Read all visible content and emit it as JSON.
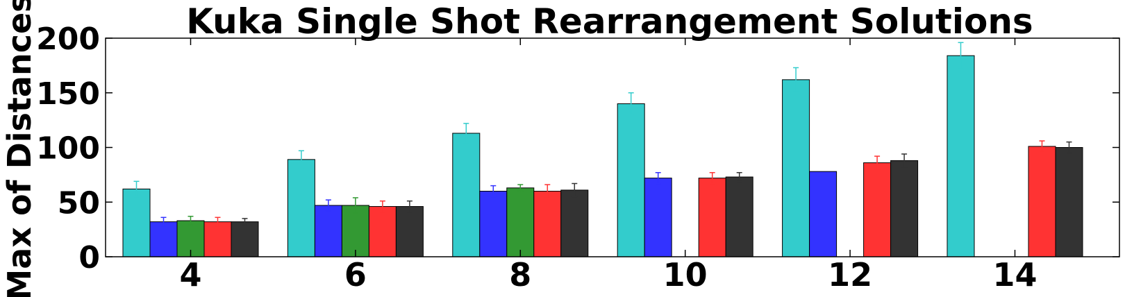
{
  "chart_data": {
    "type": "bar",
    "title": "Kuka Single Shot Rearrangement Solutions",
    "xlabel": "",
    "ylabel": "Max of Distances",
    "ylim": [
      0,
      200
    ],
    "yticks": [
      0,
      50,
      100,
      150,
      200
    ],
    "categories": [
      "4",
      "6",
      "8",
      "10",
      "12",
      "14"
    ],
    "grid": false,
    "series": [
      {
        "color": "#33cccc",
        "values": [
          62,
          89,
          113,
          140,
          162,
          184
        ],
        "errors": [
          7,
          8,
          9,
          10,
          11,
          12
        ]
      },
      {
        "color": "#3333ff",
        "values": [
          32,
          47,
          60,
          72,
          78,
          null
        ],
        "errors": [
          4,
          5,
          5,
          5,
          0,
          null
        ]
      },
      {
        "color": "#339933",
        "values": [
          33,
          47,
          63,
          null,
          null,
          null
        ],
        "errors": [
          4,
          7,
          3,
          null,
          null,
          null
        ]
      },
      {
        "color": "#ff3333",
        "values": [
          32,
          46,
          60,
          72,
          86,
          101
        ],
        "errors": [
          4,
          5,
          6,
          5,
          6,
          5
        ]
      },
      {
        "color": "#333333",
        "values": [
          32,
          46,
          61,
          73,
          88,
          100
        ],
        "errors": [
          3,
          5,
          6,
          4,
          6,
          5
        ]
      }
    ]
  }
}
